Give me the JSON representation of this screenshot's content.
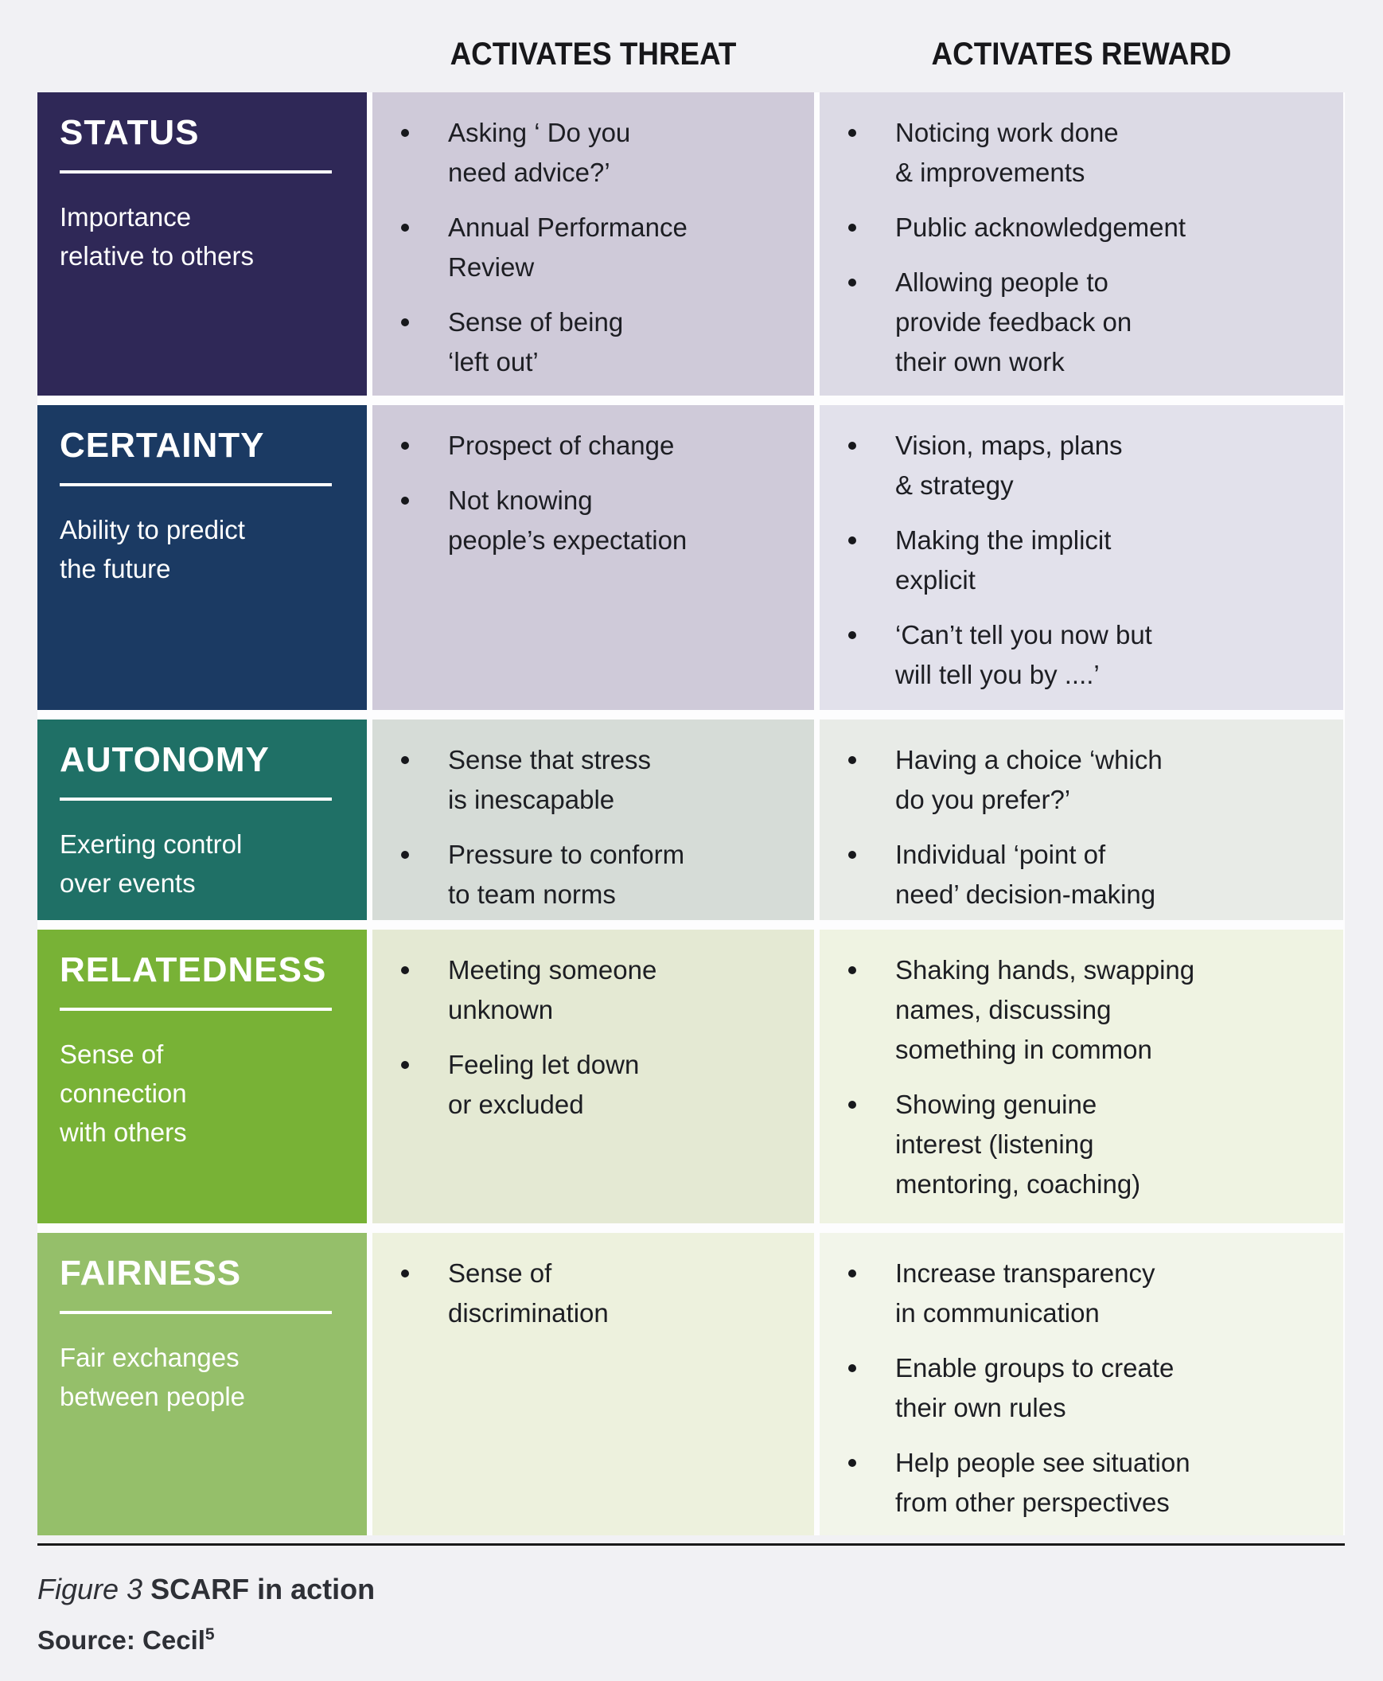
{
  "header": {
    "threat": "ACTIVATES THREAT",
    "reward": "ACTIVATES REWARD"
  },
  "rows": [
    {
      "title": "STATUS",
      "subtitle": "Importance\nrelative to others",
      "color": "#2f2857",
      "threat_bg": "#cfcad9",
      "reward_bg": "#dcdae5",
      "threat": [
        "Asking ‘ Do you\nneed advice?’",
        "Annual Performance\nReview",
        "Sense of being\n‘left out’"
      ],
      "reward": [
        "Noticing work done\n& improvements",
        "Public acknowledgement",
        "Allowing people to\nprovide feedback on\ntheir own work"
      ]
    },
    {
      "title": "CERTAINTY",
      "subtitle": "Ability to predict\nthe future",
      "color": "#1b3a63",
      "threat_bg": "#cfcad9",
      "reward_bg": "#e2e1eb",
      "threat": [
        "Prospect of change",
        "Not knowing\npeople’s expectation"
      ],
      "reward": [
        "Vision, maps, plans\n& strategy",
        "Making the implicit\nexplicit",
        "‘Can’t tell you now but\nwill tell you by ....’"
      ]
    },
    {
      "title": "AUTONOMY",
      "subtitle": "Exerting control\nover events",
      "color": "#1f7066",
      "threat_bg": "#d6dcd7",
      "reward_bg": "#e8ebe7",
      "threat": [
        "Sense that stress\nis inescapable",
        "Pressure to conform\nto team norms"
      ],
      "reward": [
        "Having a choice ‘which\ndo you prefer?’",
        "Individual ‘point of\nneed’ decision-making"
      ]
    },
    {
      "title": "RELATEDNESS",
      "subtitle": "Sense of\nconnection\nwith others",
      "color": "#78b236",
      "threat_bg": "#e4e9d3",
      "reward_bg": "#eff3e2",
      "threat": [
        "Meeting someone\nunknown",
        "Feeling let down\nor excluded"
      ],
      "reward": [
        "Shaking hands, swapping\nnames, discussing\nsomething in common",
        "Showing genuine\ninterest (listening\nmentoring, coaching)"
      ]
    },
    {
      "title": "FAIRNESS",
      "subtitle": "Fair exchanges\nbetween people",
      "color": "#95bf6a",
      "threat_bg": "#edf1dd",
      "reward_bg": "#f2f5ea",
      "threat": [
        "Sense of\ndiscrimination"
      ],
      "reward": [
        "Increase transparency\nin communication",
        "Enable groups to create\ntheir own rules",
        "Help people see situation\nfrom other perspectives"
      ]
    }
  ],
  "footer": {
    "figure_label": "Figure 3",
    "figure_title": "SCARF in action",
    "source_label": "Source: Cecil",
    "source_sup": "5"
  }
}
